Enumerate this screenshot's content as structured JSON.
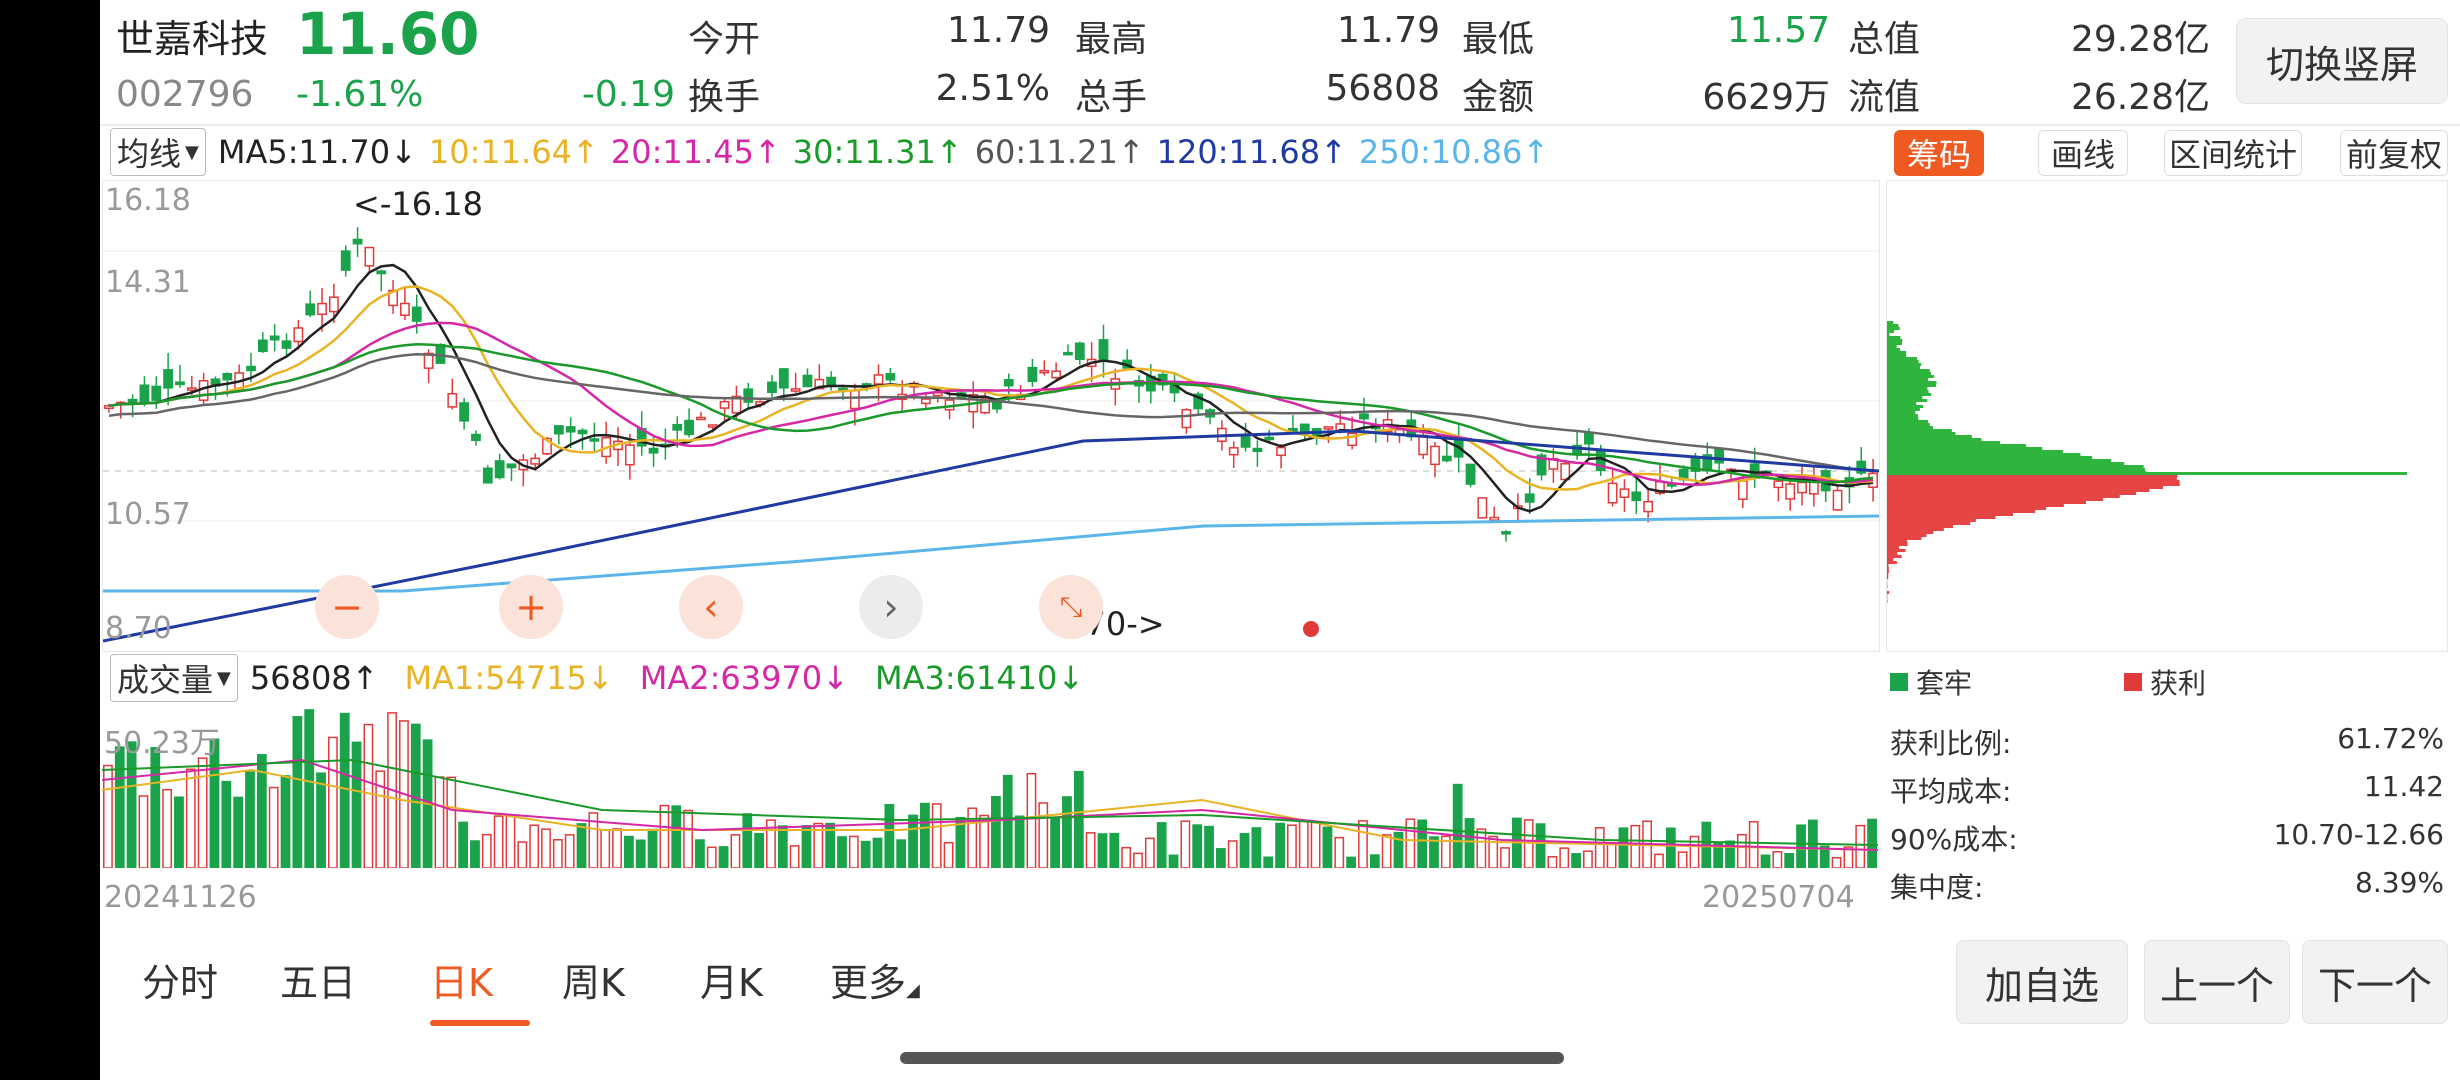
{
  "stock": {
    "name": "世嘉科技",
    "price": "11.60",
    "code": "002796",
    "change_pct": "-1.61%",
    "change": "-0.19"
  },
  "quote": {
    "open_label": "今开",
    "open": "11.79",
    "high_label": "最高",
    "high": "11.79",
    "low_label": "最低",
    "low": "11.57",
    "total_value_label": "总值",
    "total_value": "29.28亿",
    "turnover_label": "换手",
    "turnover": "2.51%",
    "total_hands_label": "总手",
    "total_hands": "56808",
    "amount_label": "金额",
    "amount": "6629万",
    "float_value_label": "流值",
    "float_value": "26.28亿"
  },
  "switch_button": "切换竖屏",
  "ma_bar": {
    "selector": "均线",
    "ma5": "MA5:11.70↓",
    "ma10": "10:11.64↑",
    "ma20": "20:11.45↑",
    "ma30": "30:11.31↑",
    "ma60": "60:11.21↑",
    "ma120": "120:11.68↑",
    "ma250": "250:10.86↑"
  },
  "right_tabs": [
    "筹码",
    "画线",
    "区间统计",
    "前复权"
  ],
  "kline_axis": {
    "top": "16.18",
    "second": "14.31",
    "third": "10.57",
    "bottom": "8.70"
  },
  "kline_marks": {
    "high": "<-16.18",
    "low": "8.70->"
  },
  "volume_bar": {
    "selector": "成交量",
    "vol": "56808↑",
    "ma1": "MA1:54715↓",
    "ma2": "MA2:63970↓",
    "ma3": "MA3:61410↓"
  },
  "volume_axis_top": "50.23万",
  "date_start": "20241126",
  "date_end": "20250704",
  "chips": {
    "legend_trapped": "套牢",
    "legend_profit": "获利",
    "stats": [
      {
        "label": "获利比例:",
        "value": "61.72%"
      },
      {
        "label": "平均成本:",
        "value": "11.42"
      },
      {
        "label": "90%成本:",
        "value": "10.70-12.66"
      },
      {
        "label": "集中度:",
        "value": "8.39%"
      }
    ]
  },
  "bottom_tabs": [
    "分时",
    "五日",
    "日K",
    "周K",
    "月K",
    "更多"
  ],
  "bottom_buttons": [
    "加自选",
    "上一个",
    "下一个"
  ],
  "colors": {
    "up": "#e03a3a",
    "down": "#1aa34a",
    "accent": "#ef5a23"
  }
}
